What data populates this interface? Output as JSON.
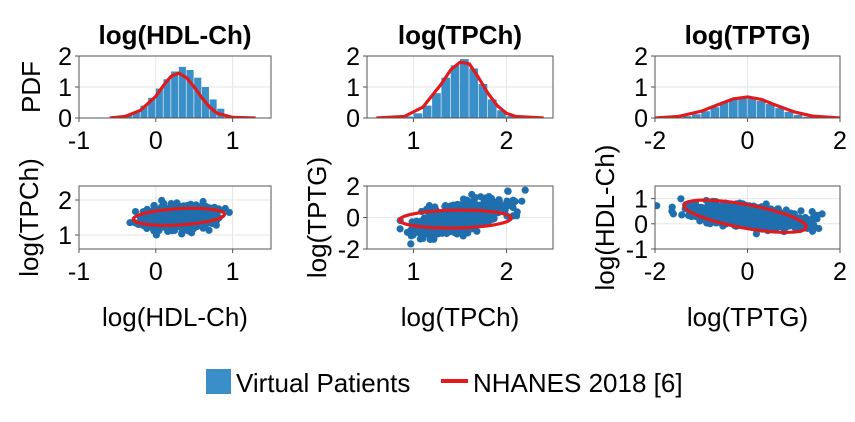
{
  "colors": {
    "bars": "#3a8fc8",
    "scatter": "#1f6fae",
    "curve": "#e31a1c",
    "frame": "#555555",
    "grid": "#e6e6e6"
  },
  "chart_data": [
    {
      "type": "bar",
      "panel": "hist-hdl",
      "title": "log(HDL-Ch)",
      "xlabel": "",
      "ylabel": "PDF",
      "xlim": [
        -1,
        1.5
      ],
      "ylim": [
        0,
        2
      ],
      "xticks": [
        -1,
        0,
        1
      ],
      "yticks": [
        0,
        1,
        2
      ],
      "bin_edges": [
        -0.5,
        -0.4,
        -0.3,
        -0.2,
        -0.1,
        0.0,
        0.1,
        0.2,
        0.3,
        0.4,
        0.5,
        0.6,
        0.7,
        0.8,
        0.9,
        1.0
      ],
      "values": [
        0.02,
        0.08,
        0.2,
        0.4,
        0.65,
        0.95,
        1.25,
        1.5,
        1.65,
        1.55,
        1.3,
        1.0,
        0.6,
        0.3,
        0.08
      ],
      "series": [
        {
          "name": "NHANES 2018 [6]",
          "kind": "curve",
          "x": [
            -0.6,
            -0.4,
            -0.2,
            0.0,
            0.1,
            0.2,
            0.3,
            0.4,
            0.5,
            0.6,
            0.7,
            0.8,
            1.0,
            1.3
          ],
          "y": [
            0.0,
            0.05,
            0.25,
            0.7,
            1.05,
            1.35,
            1.45,
            1.3,
            1.0,
            0.65,
            0.35,
            0.15,
            0.02,
            0.0
          ]
        }
      ]
    },
    {
      "type": "bar",
      "panel": "hist-tpch",
      "title": "log(TPCh)",
      "xlabel": "",
      "ylabel": "",
      "xlim": [
        0.5,
        2.5
      ],
      "ylim": [
        0,
        2
      ],
      "xticks": [
        1,
        2
      ],
      "yticks": [
        0,
        1,
        2
      ],
      "bin_edges": [
        0.9,
        1.0,
        1.1,
        1.2,
        1.3,
        1.4,
        1.5,
        1.6,
        1.7,
        1.8,
        1.9,
        2.0,
        2.1
      ],
      "values": [
        0.05,
        0.15,
        0.4,
        0.8,
        1.3,
        1.7,
        1.9,
        1.6,
        1.1,
        0.6,
        0.25,
        0.06
      ],
      "series": [
        {
          "name": "NHANES 2018 [6]",
          "kind": "curve",
          "x": [
            0.6,
            0.9,
            1.1,
            1.3,
            1.4,
            1.5,
            1.6,
            1.7,
            1.8,
            1.9,
            2.0,
            2.1,
            2.4
          ],
          "y": [
            0.0,
            0.05,
            0.35,
            1.1,
            1.55,
            1.8,
            1.75,
            1.3,
            0.8,
            0.4,
            0.15,
            0.05,
            0.0
          ]
        }
      ]
    },
    {
      "type": "bar",
      "panel": "hist-tptg",
      "title": "log(TPTG)",
      "xlabel": "",
      "ylabel": "",
      "xlim": [
        -2,
        2
      ],
      "ylim": [
        0,
        2
      ],
      "xticks": [
        -2,
        0,
        2
      ],
      "yticks": [
        0,
        1,
        2
      ],
      "bin_edges": [
        -1.6,
        -1.4,
        -1.2,
        -1.0,
        -0.8,
        -0.6,
        -0.4,
        -0.2,
        0.0,
        0.2,
        0.4,
        0.6,
        0.8,
        1.0,
        1.2,
        1.4
      ],
      "values": [
        0.02,
        0.06,
        0.12,
        0.22,
        0.35,
        0.5,
        0.6,
        0.65,
        0.62,
        0.55,
        0.45,
        0.32,
        0.2,
        0.1,
        0.04
      ],
      "series": [
        {
          "name": "NHANES 2018 [6]",
          "kind": "curve",
          "x": [
            -2.0,
            -1.5,
            -1.0,
            -0.6,
            -0.3,
            0.0,
            0.3,
            0.6,
            1.0,
            1.4,
            2.0
          ],
          "y": [
            0.0,
            0.05,
            0.22,
            0.45,
            0.62,
            0.68,
            0.6,
            0.42,
            0.2,
            0.06,
            0.0
          ]
        }
      ]
    },
    {
      "type": "scatter",
      "panel": "scatter-hdl-tpch",
      "title": "",
      "xlabel": "log(HDL-Ch)",
      "ylabel": "log(TPCh)",
      "xlim": [
        -1,
        1.5
      ],
      "ylim": [
        0.6,
        2.4
      ],
      "xticks": [
        -1,
        0,
        1
      ],
      "yticks": [
        1,
        2
      ],
      "cloud": {
        "cx": 0.3,
        "cy": 1.5,
        "sx": 0.22,
        "sy": 0.16,
        "rho": 0.2,
        "n": 900
      },
      "ellipse": {
        "name": "NHANES 2018 [6]",
        "cx": 0.3,
        "cy": 1.52,
        "rx": 0.6,
        "ry": 0.23,
        "angle_deg": 8
      }
    },
    {
      "type": "scatter",
      "panel": "scatter-tpch-tptg",
      "title": "",
      "xlabel": "log(TPCh)",
      "ylabel": "log(TPTG)",
      "xlim": [
        0.5,
        2.5
      ],
      "ylim": [
        -2,
        2
      ],
      "xticks": [
        1,
        2
      ],
      "yticks": [
        -2,
        0,
        2
      ],
      "cloud": {
        "cx": 1.5,
        "cy": 0.0,
        "sx": 0.22,
        "sy": 0.5,
        "rho": 0.6,
        "n": 900
      },
      "ellipse": {
        "name": "NHANES 2018 [6]",
        "cx": 1.45,
        "cy": -0.1,
        "rx": 0.62,
        "ry": 0.55,
        "angle_deg": 32
      }
    },
    {
      "type": "scatter",
      "panel": "scatter-tptg-hdl",
      "title": "",
      "xlabel": "log(TPTG)",
      "ylabel": "log(HDL-Ch)",
      "xlim": [
        -2,
        2
      ],
      "ylim": [
        -1,
        1.5
      ],
      "xticks": [
        -2,
        0,
        2
      ],
      "yticks": [
        -1,
        0,
        1
      ],
      "cloud": {
        "cx": 0.0,
        "cy": 0.3,
        "sx": 0.6,
        "sy": 0.22,
        "rho": -0.5,
        "n": 900
      },
      "ellipse": {
        "name": "NHANES 2018 [6]",
        "cx": -0.05,
        "cy": 0.3,
        "rx": 1.4,
        "ry": 0.45,
        "angle_deg": -20
      }
    }
  ],
  "legend": {
    "position": "bottom-center",
    "items": [
      {
        "label": "Virtual Patients",
        "kind": "patch"
      },
      {
        "label": "NHANES 2018 [6]",
        "kind": "line"
      }
    ]
  }
}
